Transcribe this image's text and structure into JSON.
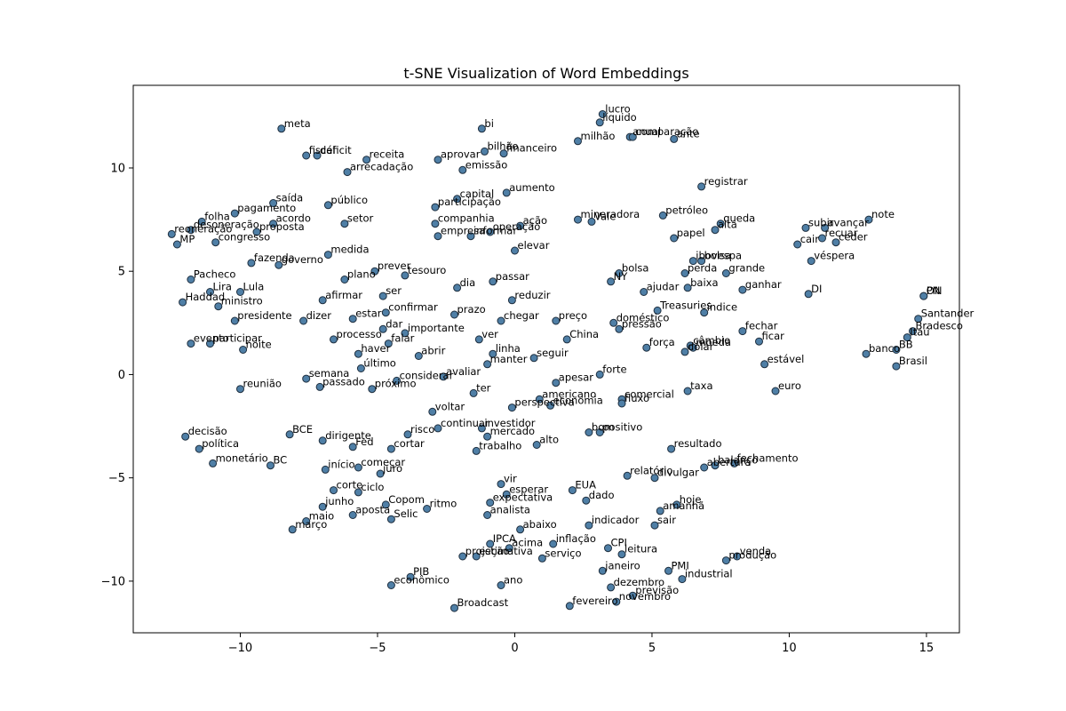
{
  "chart_data": {
    "type": "scatter",
    "title": "t-SNE Visualization of Word Embeddings",
    "xlabel": "",
    "ylabel": "",
    "xlim": [
      -13.9,
      16.2
    ],
    "ylim": [
      -12.5,
      14.0
    ],
    "xticks": [
      -10,
      -5,
      0,
      5,
      10,
      15
    ],
    "yticks": [
      -10,
      -5,
      0,
      5,
      10
    ],
    "xtick_labels": [
      "−10",
      "−5",
      "0",
      "5",
      "10",
      "15"
    ],
    "ytick_labels": [
      "−10",
      "−5",
      "0",
      "5",
      "10"
    ],
    "grid": false,
    "point_color": "#4f7fa6",
    "point_edge_color": "#1f2f3f",
    "points": [
      {
        "x": -8.5,
        "y": 11.9,
        "label": "meta"
      },
      {
        "x": -1.2,
        "y": 11.9,
        "label": "bi"
      },
      {
        "x": 3.2,
        "y": 12.6,
        "label": "lucro"
      },
      {
        "x": 3.1,
        "y": 12.2,
        "label": "líquido"
      },
      {
        "x": 2.3,
        "y": 11.3,
        "label": "milhão"
      },
      {
        "x": 4.2,
        "y": 11.5,
        "label": "anual"
      },
      {
        "x": 4.3,
        "y": 11.5,
        "label": "comparação"
      },
      {
        "x": 5.8,
        "y": 11.4,
        "label": "ante"
      },
      {
        "x": -7.6,
        "y": 10.6,
        "label": "fiscal"
      },
      {
        "x": -7.2,
        "y": 10.6,
        "label": "déficit"
      },
      {
        "x": -5.4,
        "y": 10.4,
        "label": "receita"
      },
      {
        "x": -6.1,
        "y": 9.8,
        "label": "arrecadação"
      },
      {
        "x": -2.8,
        "y": 10.4,
        "label": "aprovar"
      },
      {
        "x": -1.1,
        "y": 10.8,
        "label": "bilhão"
      },
      {
        "x": -0.4,
        "y": 10.7,
        "label": "financeiro"
      },
      {
        "x": -1.9,
        "y": 9.9,
        "label": "emissão"
      },
      {
        "x": 6.8,
        "y": 9.1,
        "label": "registrar"
      },
      {
        "x": -8.8,
        "y": 8.3,
        "label": "saída"
      },
      {
        "x": -6.8,
        "y": 8.2,
        "label": "público"
      },
      {
        "x": -2.1,
        "y": 8.5,
        "label": "capital"
      },
      {
        "x": -0.3,
        "y": 8.8,
        "label": "aumento"
      },
      {
        "x": -2.9,
        "y": 8.1,
        "label": "participação"
      },
      {
        "x": -10.2,
        "y": 7.8,
        "label": "pagamento"
      },
      {
        "x": -11.4,
        "y": 7.4,
        "label": "folha"
      },
      {
        "x": -11.8,
        "y": 7.0,
        "label": "desoneração"
      },
      {
        "x": -12.5,
        "y": 6.8,
        "label": "reoneração"
      },
      {
        "x": -12.3,
        "y": 6.3,
        "label": "MP"
      },
      {
        "x": -8.8,
        "y": 7.3,
        "label": "acordo"
      },
      {
        "x": -9.4,
        "y": 6.9,
        "label": "proposta"
      },
      {
        "x": -10.9,
        "y": 6.4,
        "label": "congresso"
      },
      {
        "x": -6.2,
        "y": 7.3,
        "label": "setor"
      },
      {
        "x": -2.9,
        "y": 7.3,
        "label": "companhia"
      },
      {
        "x": -2.8,
        "y": 6.7,
        "label": "empresa"
      },
      {
        "x": -1.6,
        "y": 6.7,
        "label": "informar"
      },
      {
        "x": -0.9,
        "y": 6.9,
        "label": "operação"
      },
      {
        "x": 0.2,
        "y": 7.2,
        "label": "ação"
      },
      {
        "x": 2.3,
        "y": 7.5,
        "label": "mineradora"
      },
      {
        "x": 2.8,
        "y": 7.4,
        "label": "Vale"
      },
      {
        "x": 5.4,
        "y": 7.7,
        "label": "petróleo"
      },
      {
        "x": 7.5,
        "y": 7.3,
        "label": "queda"
      },
      {
        "x": 7.3,
        "y": 7.0,
        "label": "alta"
      },
      {
        "x": 5.8,
        "y": 6.6,
        "label": "papel"
      },
      {
        "x": 10.6,
        "y": 7.1,
        "label": "subir"
      },
      {
        "x": 11.3,
        "y": 7.1,
        "label": "avançar"
      },
      {
        "x": 12.9,
        "y": 7.5,
        "label": "note"
      },
      {
        "x": 11.2,
        "y": 6.6,
        "label": "recuar"
      },
      {
        "x": 10.3,
        "y": 6.3,
        "label": "cair"
      },
      {
        "x": 11.7,
        "y": 6.4,
        "label": "ceder"
      },
      {
        "x": -6.8,
        "y": 5.8,
        "label": "medida"
      },
      {
        "x": 0.0,
        "y": 6.0,
        "label": "elevar"
      },
      {
        "x": -9.6,
        "y": 5.4,
        "label": "fazenda"
      },
      {
        "x": -8.6,
        "y": 5.3,
        "label": "governo"
      },
      {
        "x": -5.1,
        "y": 5.0,
        "label": "prever"
      },
      {
        "x": -4.0,
        "y": 4.8,
        "label": "tesouro"
      },
      {
        "x": 6.5,
        "y": 5.5,
        "label": "ibovespa"
      },
      {
        "x": 6.8,
        "y": 5.5,
        "label": "bolsa"
      },
      {
        "x": 3.8,
        "y": 4.9,
        "label": "bolsa"
      },
      {
        "x": 6.2,
        "y": 4.9,
        "label": "perda"
      },
      {
        "x": 7.7,
        "y": 4.9,
        "label": "grande"
      },
      {
        "x": 10.8,
        "y": 5.5,
        "label": "véspera"
      },
      {
        "x": 3.5,
        "y": 4.5,
        "label": "NY"
      },
      {
        "x": -11.8,
        "y": 4.6,
        "label": "Pacheco"
      },
      {
        "x": -6.2,
        "y": 4.6,
        "label": "plano"
      },
      {
        "x": -2.1,
        "y": 4.2,
        "label": "dia"
      },
      {
        "x": -0.8,
        "y": 4.5,
        "label": "passar"
      },
      {
        "x": 4.7,
        "y": 4.0,
        "label": "ajudar"
      },
      {
        "x": 6.3,
        "y": 4.2,
        "label": "baixa"
      },
      {
        "x": 8.3,
        "y": 4.1,
        "label": "ganhar"
      },
      {
        "x": 10.7,
        "y": 3.9,
        "label": "DI"
      },
      {
        "x": 14.9,
        "y": 3.8,
        "label": "ON"
      },
      {
        "x": 14.9,
        "y": 3.8,
        "label": "PN"
      },
      {
        "x": -11.1,
        "y": 4.0,
        "label": "Lira"
      },
      {
        "x": -10.0,
        "y": 4.0,
        "label": "Lula"
      },
      {
        "x": -12.1,
        "y": 3.5,
        "label": "Haddad"
      },
      {
        "x": -10.8,
        "y": 3.3,
        "label": "ministro"
      },
      {
        "x": -4.8,
        "y": 3.8,
        "label": "ser"
      },
      {
        "x": -7.0,
        "y": 3.6,
        "label": "afirmar"
      },
      {
        "x": -0.1,
        "y": 3.6,
        "label": "reduzir"
      },
      {
        "x": 5.2,
        "y": 3.1,
        "label": "Treasuries"
      },
      {
        "x": 6.9,
        "y": 3.0,
        "label": "índice"
      },
      {
        "x": -4.7,
        "y": 3.0,
        "label": "confirmar"
      },
      {
        "x": -10.2,
        "y": 2.6,
        "label": "presidente"
      },
      {
        "x": -7.7,
        "y": 2.6,
        "label": "dizer"
      },
      {
        "x": -5.9,
        "y": 2.7,
        "label": "estar"
      },
      {
        "x": -2.2,
        "y": 2.9,
        "label": "prazo"
      },
      {
        "x": -0.5,
        "y": 2.6,
        "label": "chegar"
      },
      {
        "x": 1.5,
        "y": 2.6,
        "label": "preço"
      },
      {
        "x": 3.6,
        "y": 2.5,
        "label": "doméstico"
      },
      {
        "x": 3.8,
        "y": 2.2,
        "label": "pressão"
      },
      {
        "x": -4.8,
        "y": 2.2,
        "label": "dar"
      },
      {
        "x": -4.0,
        "y": 2.0,
        "label": "importante"
      },
      {
        "x": 8.3,
        "y": 2.1,
        "label": "fechar"
      },
      {
        "x": 14.7,
        "y": 2.7,
        "label": "Santander"
      },
      {
        "x": 14.5,
        "y": 2.1,
        "label": "Bradesco"
      },
      {
        "x": 14.3,
        "y": 1.8,
        "label": "Itaú"
      },
      {
        "x": -6.6,
        "y": 1.7,
        "label": "processo"
      },
      {
        "x": -4.6,
        "y": 1.5,
        "label": "falar"
      },
      {
        "x": -1.3,
        "y": 1.7,
        "label": "ver"
      },
      {
        "x": 1.9,
        "y": 1.7,
        "label": "China"
      },
      {
        "x": 8.9,
        "y": 1.6,
        "label": "ficar"
      },
      {
        "x": -11.8,
        "y": 1.5,
        "label": "evento"
      },
      {
        "x": -11.1,
        "y": 1.5,
        "label": "participar"
      },
      {
        "x": -9.9,
        "y": 1.2,
        "label": "noite"
      },
      {
        "x": -5.7,
        "y": 1.0,
        "label": "haver"
      },
      {
        "x": -3.5,
        "y": 0.9,
        "label": "abrir"
      },
      {
        "x": -0.8,
        "y": 1.0,
        "label": "linha"
      },
      {
        "x": 4.8,
        "y": 1.3,
        "label": "força"
      },
      {
        "x": 6.4,
        "y": 1.4,
        "label": "câmbio"
      },
      {
        "x": 6.5,
        "y": 1.3,
        "label": "moeda"
      },
      {
        "x": 6.2,
        "y": 1.1,
        "label": "dólar"
      },
      {
        "x": 12.8,
        "y": 1.0,
        "label": "banco"
      },
      {
        "x": 13.9,
        "y": 1.2,
        "label": "BB"
      },
      {
        "x": -5.6,
        "y": 0.3,
        "label": "último"
      },
      {
        "x": -1.0,
        "y": 0.5,
        "label": "manter"
      },
      {
        "x": 0.7,
        "y": 0.8,
        "label": "seguir"
      },
      {
        "x": 9.1,
        "y": 0.5,
        "label": "estável"
      },
      {
        "x": 13.9,
        "y": 0.4,
        "label": "Brasil"
      },
      {
        "x": -7.6,
        "y": -0.2,
        "label": "semana"
      },
      {
        "x": -2.6,
        "y": -0.1,
        "label": "avaliar"
      },
      {
        "x": -4.3,
        "y": -0.3,
        "label": "considerar"
      },
      {
        "x": 3.1,
        "y": 0.0,
        "label": "forte"
      },
      {
        "x": 1.5,
        "y": -0.4,
        "label": "apesar"
      },
      {
        "x": -10.0,
        "y": -0.7,
        "label": "reunião"
      },
      {
        "x": -7.1,
        "y": -0.6,
        "label": "passado"
      },
      {
        "x": -5.2,
        "y": -0.7,
        "label": "próximo"
      },
      {
        "x": -1.5,
        "y": -0.9,
        "label": "ter"
      },
      {
        "x": 6.3,
        "y": -0.8,
        "label": "taxa"
      },
      {
        "x": 9.5,
        "y": -0.8,
        "label": "euro"
      },
      {
        "x": 0.9,
        "y": -1.2,
        "label": "americano"
      },
      {
        "x": 3.9,
        "y": -1.2,
        "label": "comercial"
      },
      {
        "x": 3.9,
        "y": -1.4,
        "label": "fluxo"
      },
      {
        "x": -0.1,
        "y": -1.6,
        "label": "perspectiva"
      },
      {
        "x": 1.3,
        "y": -1.5,
        "label": "economia"
      },
      {
        "x": -3.0,
        "y": -1.8,
        "label": "voltar"
      },
      {
        "x": -2.8,
        "y": -2.6,
        "label": "continuar"
      },
      {
        "x": -1.2,
        "y": -2.6,
        "label": "investidor"
      },
      {
        "x": -3.9,
        "y": -2.9,
        "label": "risco"
      },
      {
        "x": -1.0,
        "y": -3.0,
        "label": "mercado"
      },
      {
        "x": 2.7,
        "y": -2.8,
        "label": "bom"
      },
      {
        "x": 3.1,
        "y": -2.8,
        "label": "positivo"
      },
      {
        "x": -12.0,
        "y": -3.0,
        "label": "decisão"
      },
      {
        "x": -8.2,
        "y": -2.9,
        "label": "BCE"
      },
      {
        "x": -7.0,
        "y": -3.2,
        "label": "dirigente"
      },
      {
        "x": -11.5,
        "y": -3.6,
        "label": "política"
      },
      {
        "x": -5.9,
        "y": -3.5,
        "label": "Fed"
      },
      {
        "x": -4.5,
        "y": -3.6,
        "label": "cortar"
      },
      {
        "x": -1.4,
        "y": -3.7,
        "label": "trabalho"
      },
      {
        "x": 0.8,
        "y": -3.4,
        "label": "alto"
      },
      {
        "x": 5.7,
        "y": -3.6,
        "label": "resultado"
      },
      {
        "x": -11.0,
        "y": -4.3,
        "label": "monetário"
      },
      {
        "x": -8.9,
        "y": -4.4,
        "label": "BC"
      },
      {
        "x": -6.9,
        "y": -4.6,
        "label": "início"
      },
      {
        "x": -5.7,
        "y": -4.5,
        "label": "começar"
      },
      {
        "x": -4.9,
        "y": -4.8,
        "label": "juro"
      },
      {
        "x": 6.9,
        "y": -4.5,
        "label": "abertura"
      },
      {
        "x": 7.3,
        "y": -4.4,
        "label": "balanço"
      },
      {
        "x": 8.0,
        "y": -4.3,
        "label": "fechamento"
      },
      {
        "x": 4.1,
        "y": -4.9,
        "label": "relatório"
      },
      {
        "x": 5.1,
        "y": -5.0,
        "label": "divulgar"
      },
      {
        "x": -0.5,
        "y": -5.3,
        "label": "vir"
      },
      {
        "x": -6.6,
        "y": -5.6,
        "label": "corte"
      },
      {
        "x": -5.7,
        "y": -5.7,
        "label": "ciclo"
      },
      {
        "x": -0.3,
        "y": -5.8,
        "label": "esperar"
      },
      {
        "x": 2.1,
        "y": -5.6,
        "label": "EUA"
      },
      {
        "x": 2.6,
        "y": -6.1,
        "label": "dado"
      },
      {
        "x": -0.9,
        "y": -6.2,
        "label": "expectativa"
      },
      {
        "x": -7.0,
        "y": -6.4,
        "label": "junho"
      },
      {
        "x": -4.7,
        "y": -6.3,
        "label": "Copom"
      },
      {
        "x": -3.2,
        "y": -6.5,
        "label": "ritmo"
      },
      {
        "x": 5.9,
        "y": -6.3,
        "label": "hoje"
      },
      {
        "x": 5.3,
        "y": -6.6,
        "label": "amanhã"
      },
      {
        "x": -5.9,
        "y": -6.8,
        "label": "aposta"
      },
      {
        "x": -1.0,
        "y": -6.8,
        "label": "analista"
      },
      {
        "x": -7.6,
        "y": -7.1,
        "label": "maio"
      },
      {
        "x": -4.5,
        "y": -7.0,
        "label": "Selic"
      },
      {
        "x": -8.1,
        "y": -7.5,
        "label": "março"
      },
      {
        "x": 2.7,
        "y": -7.3,
        "label": "indicador"
      },
      {
        "x": 5.1,
        "y": -7.3,
        "label": "sair"
      },
      {
        "x": 0.2,
        "y": -7.5,
        "label": "abaixo"
      },
      {
        "x": -0.9,
        "y": -8.2,
        "label": "IPCA"
      },
      {
        "x": -0.2,
        "y": -8.4,
        "label": "acima"
      },
      {
        "x": 1.4,
        "y": -8.2,
        "label": "inflação"
      },
      {
        "x": 3.4,
        "y": -8.4,
        "label": "CPI"
      },
      {
        "x": -1.9,
        "y": -8.8,
        "label": "projeção"
      },
      {
        "x": -1.4,
        "y": -8.8,
        "label": "estimativa"
      },
      {
        "x": 1.0,
        "y": -8.9,
        "label": "serviço"
      },
      {
        "x": 3.9,
        "y": -8.7,
        "label": "leitura"
      },
      {
        "x": 8.1,
        "y": -8.8,
        "label": "venda"
      },
      {
        "x": 7.7,
        "y": -9.0,
        "label": "produção"
      },
      {
        "x": 3.2,
        "y": -9.5,
        "label": "janeiro"
      },
      {
        "x": 5.6,
        "y": -9.5,
        "label": "PMI"
      },
      {
        "x": 6.1,
        "y": -9.9,
        "label": "industrial"
      },
      {
        "x": -3.8,
        "y": -9.8,
        "label": "PIB"
      },
      {
        "x": 3.5,
        "y": -10.3,
        "label": "dezembro"
      },
      {
        "x": 4.3,
        "y": -10.7,
        "label": "previsão"
      },
      {
        "x": -4.5,
        "y": -10.2,
        "label": "econômico"
      },
      {
        "x": -0.5,
        "y": -10.2,
        "label": "ano"
      },
      {
        "x": 3.7,
        "y": -11.0,
        "label": "novembro"
      },
      {
        "x": 2.0,
        "y": -11.2,
        "label": "fevereiro"
      },
      {
        "x": -2.2,
        "y": -11.3,
        "label": "Broadcast"
      }
    ]
  }
}
